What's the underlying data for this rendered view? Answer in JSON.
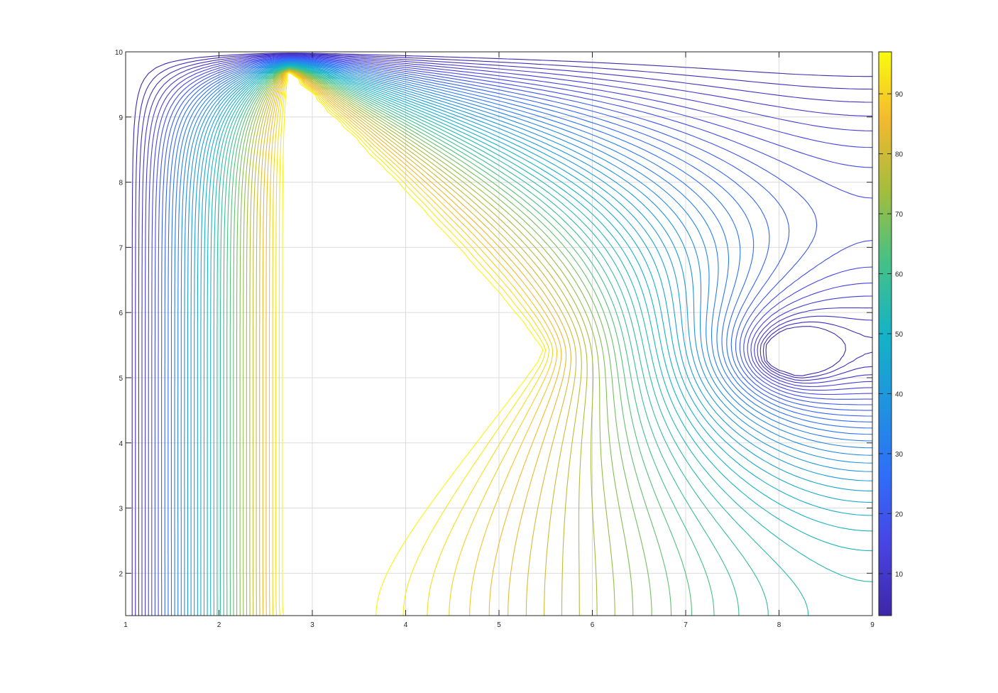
{
  "chart_data": {
    "type": "contour",
    "title": "",
    "xlabel": "",
    "ylabel": "",
    "xlim": [
      1,
      9
    ],
    "ylim": [
      1.35,
      10
    ],
    "x_ticks": [
      "1",
      "2",
      "3",
      "4",
      "5",
      "6",
      "7",
      "8",
      "9"
    ],
    "y_ticks": [
      "2",
      "3",
      "4",
      "5",
      "6",
      "7",
      "8",
      "9",
      "10"
    ],
    "grid": true,
    "colormap": "parula",
    "colorbar": {
      "range": [
        3,
        97
      ],
      "ticks": [
        "10",
        "20",
        "30",
        "40",
        "50",
        "60",
        "70",
        "80",
        "90"
      ],
      "placement": "right"
    },
    "field": {
      "description_source": "potential field of a triangular electrode",
      "high_region_vertices": [
        [
          2.75,
          9.75
        ],
        [
          2.75,
          1.4
        ],
        [
          5.45,
          5.4
        ]
      ],
      "low_center": [
        8.2,
        5.4
      ],
      "level_min": 4,
      "level_max": 96,
      "level_step": 2
    }
  }
}
